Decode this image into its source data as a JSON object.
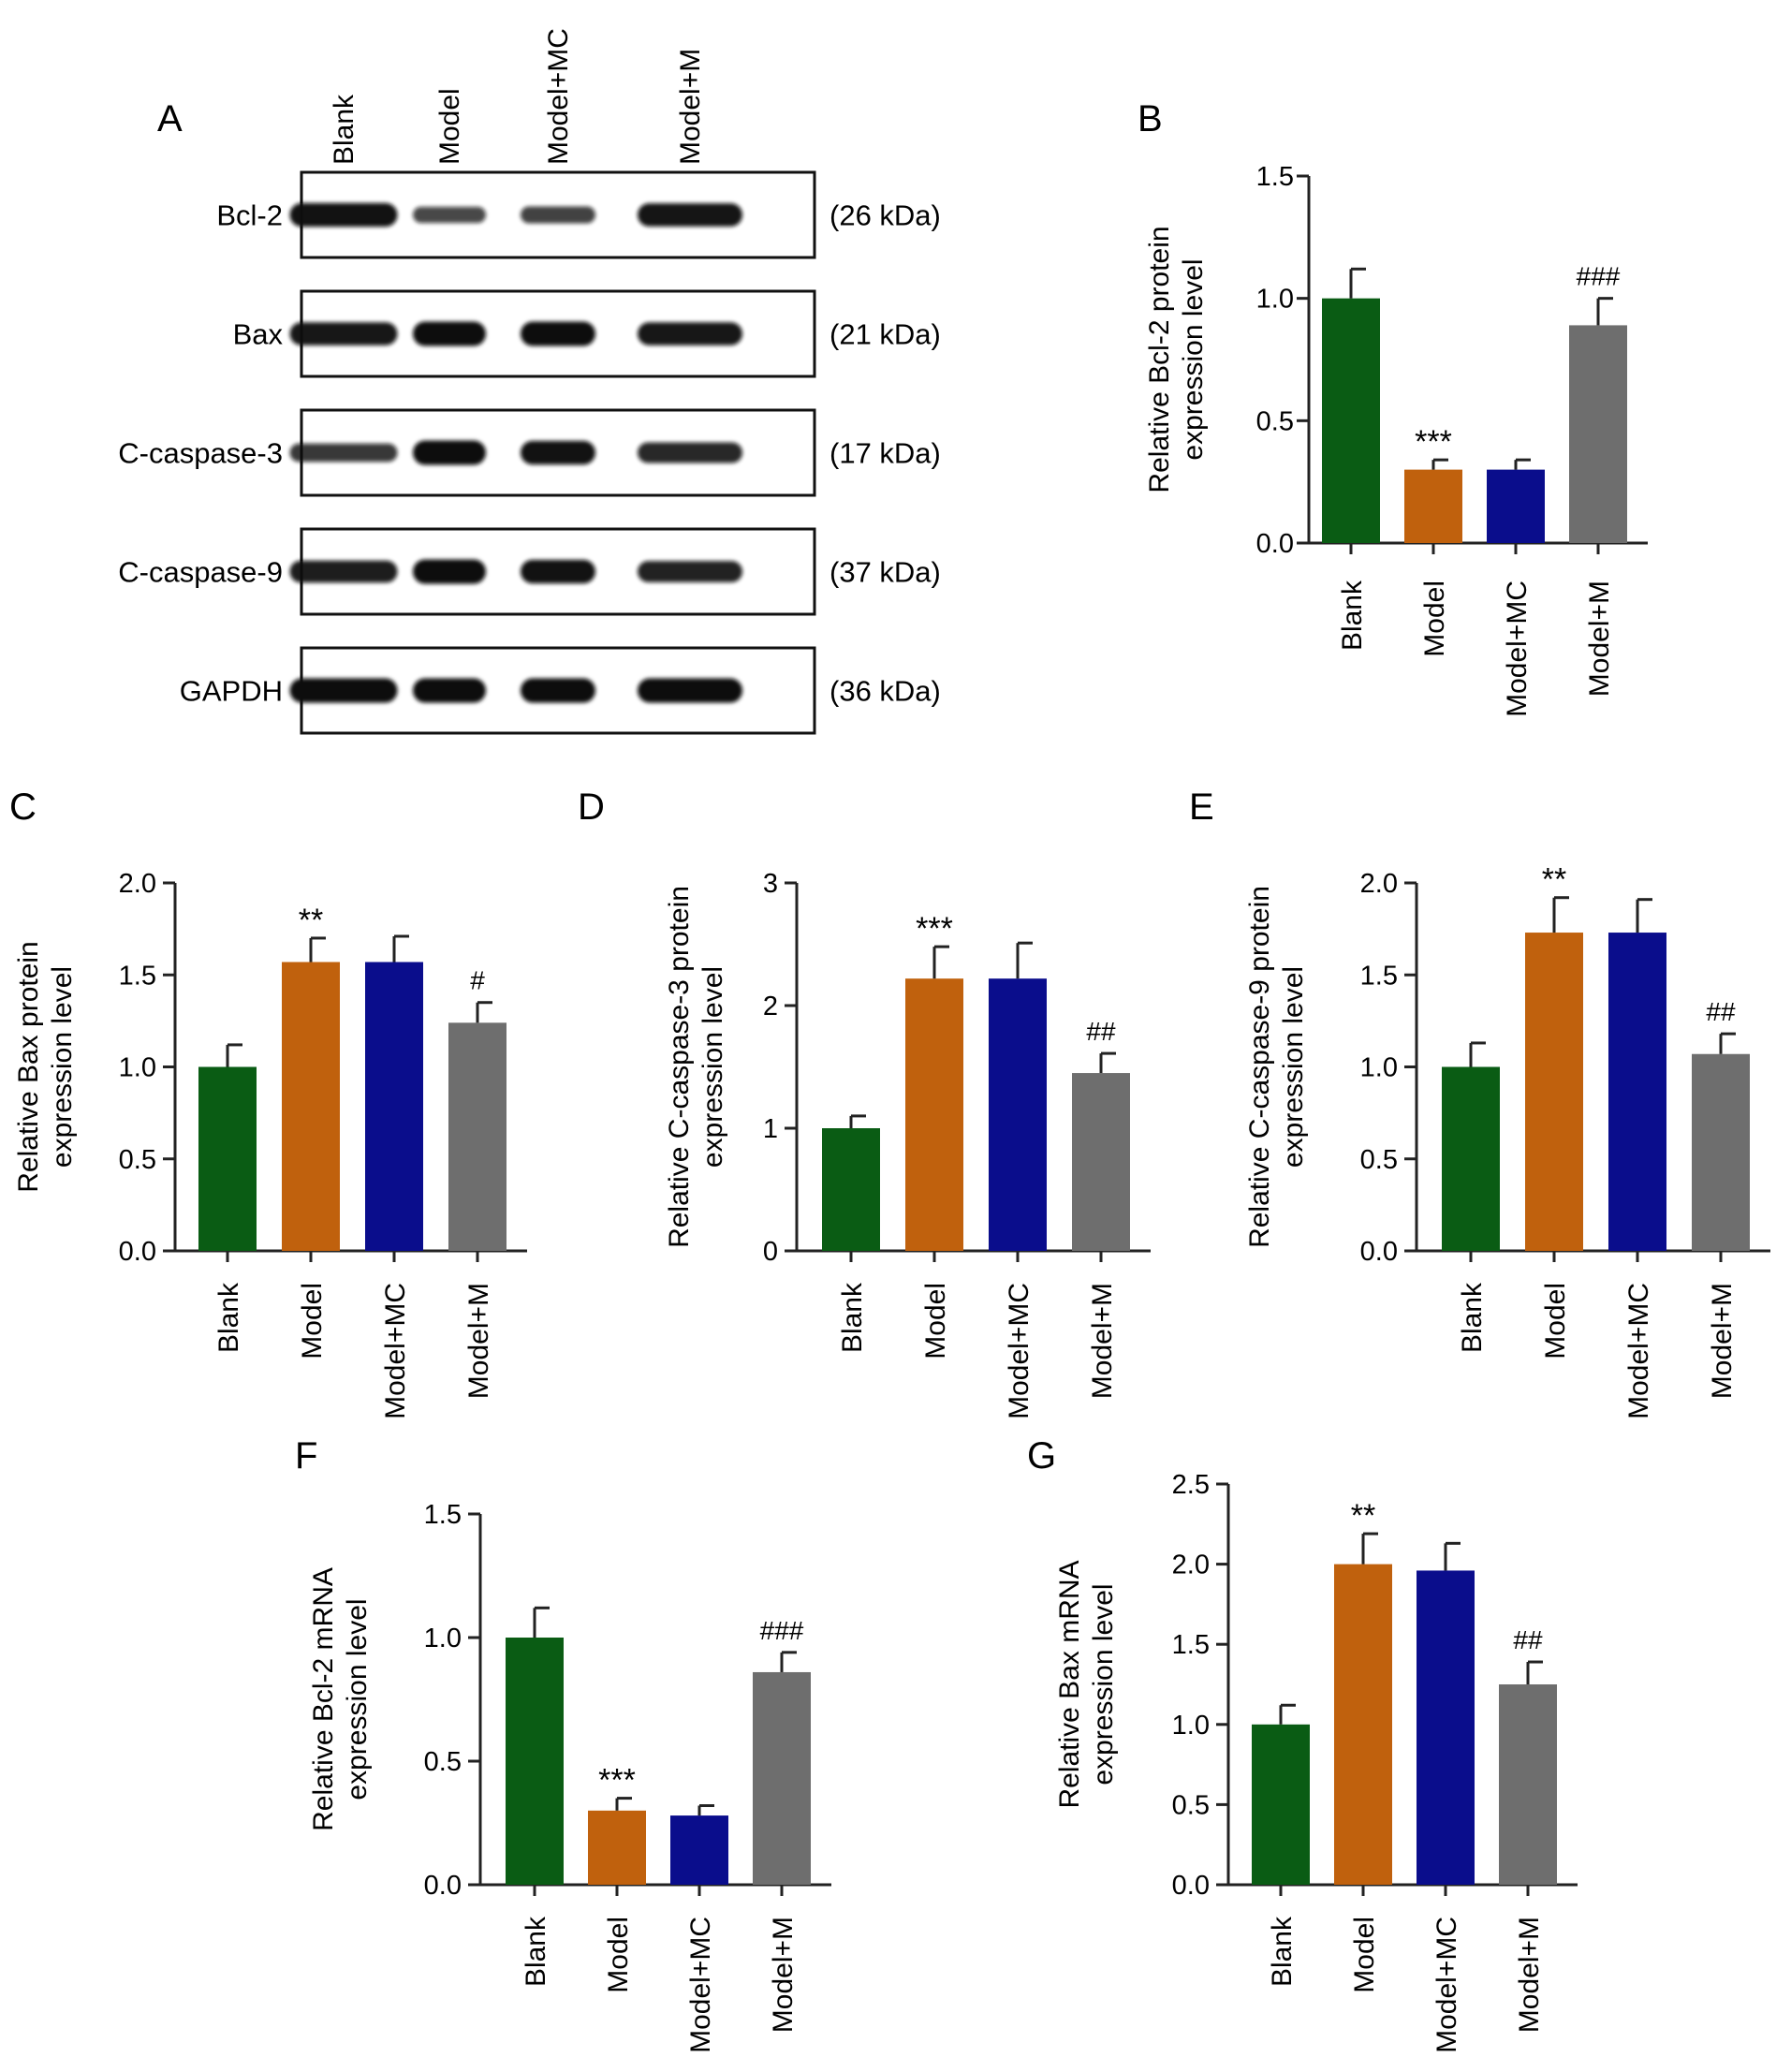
{
  "colors": {
    "blank": "#0a5c14",
    "model": "#c0610d",
    "model_mc": "#0a0d8c",
    "model_m": "#6e6e6e",
    "axis": "#222222"
  },
  "western_blot": {
    "panel_letter": "A",
    "lanes": [
      "Blank",
      "Model",
      "Model+MC",
      "Model+M"
    ],
    "rows": [
      {
        "protein": "Bcl-2",
        "size": "(26 kDa)",
        "band_intensity": [
          0.95,
          0.45,
          0.5,
          0.92
        ]
      },
      {
        "protein": "Bax",
        "size": "(21 kDa)",
        "band_intensity": [
          0.9,
          1.0,
          1.0,
          0.9
        ]
      },
      {
        "protein": "C-caspase-3",
        "size": "(17 kDa)",
        "band_intensity": [
          0.6,
          1.0,
          0.95,
          0.75
        ]
      },
      {
        "protein": "C-caspase-9",
        "size": "(37 kDa)",
        "band_intensity": [
          0.85,
          1.0,
          0.95,
          0.8
        ]
      },
      {
        "protein": "GAPDH",
        "size": "(36 kDa)",
        "band_intensity": [
          1.0,
          1.0,
          1.0,
          1.0
        ]
      }
    ]
  },
  "chart_data": [
    {
      "panel": "B",
      "type": "bar",
      "categories": [
        "Blank",
        "Model",
        "Model+MC",
        "Model+M"
      ],
      "values": [
        1.0,
        0.3,
        0.3,
        0.89
      ],
      "errors": [
        0.12,
        0.04,
        0.04,
        0.11
      ],
      "annotations": [
        "",
        "***",
        "",
        "###"
      ],
      "ylabel": [
        "Relative Bcl-2 protein",
        "expression level"
      ],
      "ylim": [
        0,
        1.5
      ],
      "yticks": [
        0,
        0.5,
        1.0,
        1.5
      ],
      "ytick_labels": [
        "0.0",
        "0.5",
        "1.0",
        "1.5"
      ]
    },
    {
      "panel": "C",
      "type": "bar",
      "categories": [
        "Blank",
        "Model",
        "Model+MC",
        "Model+M"
      ],
      "values": [
        1.0,
        1.57,
        1.57,
        1.24
      ],
      "errors": [
        0.12,
        0.13,
        0.14,
        0.11
      ],
      "annotations": [
        "",
        "**",
        "",
        "#"
      ],
      "ylabel": [
        "Relative Bax protein",
        "expression level"
      ],
      "ylim": [
        0,
        2.0
      ],
      "yticks": [
        0,
        0.5,
        1.0,
        1.5,
        2.0
      ],
      "ytick_labels": [
        "0.0",
        "0.5",
        "1.0",
        "1.5",
        "2.0"
      ]
    },
    {
      "panel": "D",
      "type": "bar",
      "categories": [
        "Blank",
        "Model",
        "Model+MC",
        "Model+M"
      ],
      "values": [
        1.0,
        2.22,
        2.22,
        1.45
      ],
      "errors": [
        0.1,
        0.26,
        0.29,
        0.16
      ],
      "annotations": [
        "",
        "***",
        "",
        "##"
      ],
      "ylabel": [
        "Relative C-caspase-3 protein",
        "expression level"
      ],
      "ylim": [
        0,
        3
      ],
      "yticks": [
        0,
        1,
        2,
        3
      ],
      "ytick_labels": [
        "0",
        "1",
        "2",
        "3"
      ]
    },
    {
      "panel": "E",
      "type": "bar",
      "categories": [
        "Blank",
        "Model",
        "Model+MC",
        "Model+M"
      ],
      "values": [
        1.0,
        1.73,
        1.73,
        1.07
      ],
      "errors": [
        0.13,
        0.19,
        0.18,
        0.11
      ],
      "annotations": [
        "",
        "**",
        "",
        "##"
      ],
      "ylabel": [
        "Relative C-caspase-9 protein",
        "expression level"
      ],
      "ylim": [
        0,
        2.0
      ],
      "yticks": [
        0,
        0.5,
        1.0,
        1.5,
        2.0
      ],
      "ytick_labels": [
        "0.0",
        "0.5",
        "1.0",
        "1.5",
        "2.0"
      ]
    },
    {
      "panel": "F",
      "type": "bar",
      "categories": [
        "Blank",
        "Model",
        "Model+MC",
        "Model+M"
      ],
      "values": [
        1.0,
        0.3,
        0.28,
        0.86
      ],
      "errors": [
        0.12,
        0.05,
        0.04,
        0.08
      ],
      "annotations": [
        "",
        "***",
        "",
        "###"
      ],
      "ylabel": [
        "Relative Bcl-2 mRNA",
        "expression level"
      ],
      "ylim": [
        0,
        1.5
      ],
      "yticks": [
        0,
        0.5,
        1.0,
        1.5
      ],
      "ytick_labels": [
        "0.0",
        "0.5",
        "1.0",
        "1.5"
      ]
    },
    {
      "panel": "G",
      "type": "bar",
      "categories": [
        "Blank",
        "Model",
        "Model+MC",
        "Model+M"
      ],
      "values": [
        1.0,
        2.0,
        1.96,
        1.25
      ],
      "errors": [
        0.12,
        0.19,
        0.17,
        0.14
      ],
      "annotations": [
        "",
        "**",
        "",
        "##"
      ],
      "ylabel": [
        "Relative Bax mRNA",
        "expression level"
      ],
      "ylim": [
        0,
        2.5
      ],
      "yticks": [
        0,
        0.5,
        1.0,
        1.5,
        2.0,
        2.5
      ],
      "ytick_labels": [
        "0.0",
        "0.5",
        "1.0",
        "1.5",
        "2.0",
        "2.5"
      ]
    }
  ]
}
